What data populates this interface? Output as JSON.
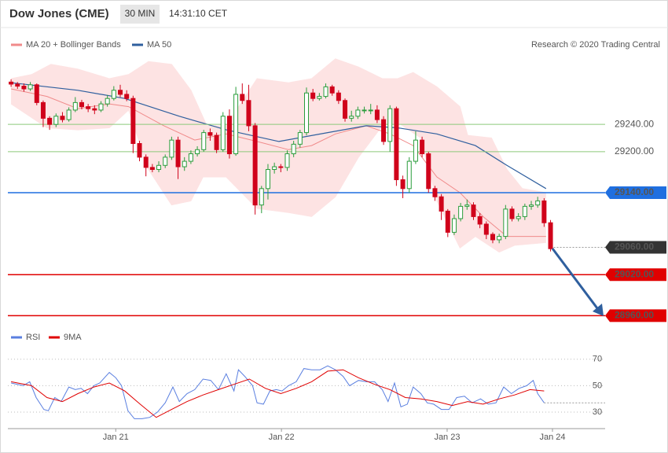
{
  "header": {
    "title": "Dow Jones (CME)",
    "timeframe": "30 MIN",
    "time": "14:31:10 CET",
    "watermark": "Research © 2020 Trading Central"
  },
  "chart_data": {
    "type": "candlestick",
    "xlim": [
      -0.5,
      92.5
    ],
    "xticks": [
      {
        "value": 16.3,
        "label": "Jan 21"
      },
      {
        "value": 42.1,
        "label": "Jan 22"
      },
      {
        "value": 67.9,
        "label": "Jan 23"
      },
      {
        "value": 84.3,
        "label": "Jan 24"
      }
    ],
    "ylim": [
      28950,
      29345
    ],
    "up_color": "#2a9d3c",
    "down_color": "#d0021b",
    "open": [
      29302,
      29299,
      29296,
      29292,
      29298,
      29272,
      29249,
      29240,
      29252,
      29247,
      29261,
      29272,
      29266,
      29263,
      29261,
      29270,
      29278,
      29290,
      29284,
      29278,
      29212,
      29192,
      29177,
      29174,
      29180,
      29192,
      29217,
      29178,
      29186,
      29197,
      29203,
      29228,
      29224,
      29203,
      29252,
      29197,
      29284,
      29275,
      29238,
      29122,
      29146,
      29174,
      29178,
      29177,
      29197,
      29211,
      29228,
      29286,
      29278,
      29281,
      29295,
      29286,
      29275,
      29249,
      29252,
      29261,
      29261,
      29261,
      29247,
      29215,
      29263,
      29159,
      29146,
      29186,
      29217,
      29197,
      29146,
      29134,
      29113,
      29082,
      29102,
      29120,
      29122,
      29105,
      29094,
      29079,
      29071,
      29076,
      29116,
      29102,
      29105,
      29120,
      29122,
      29128,
      29096
    ],
    "high": [
      29306,
      29302,
      29300,
      29302,
      29300,
      29275,
      29252,
      29256,
      29258,
      29265,
      29280,
      29276,
      29270,
      29268,
      29274,
      29283,
      29296,
      29298,
      29290,
      29282,
      29216,
      29196,
      29182,
      29186,
      29196,
      29222,
      29222,
      29192,
      29202,
      29208,
      29232,
      29234,
      29228,
      29258,
      29262,
      29295,
      29300,
      29298,
      29242,
      29150,
      29182,
      29184,
      29182,
      29202,
      29216,
      29232,
      29294,
      29292,
      29286,
      29300,
      29298,
      29290,
      29278,
      29260,
      29266,
      29266,
      29270,
      29268,
      29252,
      29268,
      29266,
      29165,
      29192,
      29230,
      29222,
      29200,
      29150,
      29138,
      29116,
      29108,
      29125,
      29130,
      29126,
      29110,
      29098,
      29082,
      29080,
      29122,
      29120,
      29110,
      29124,
      29128,
      29134,
      29132,
      29100
    ],
    "low": [
      29295,
      29292,
      29288,
      29289,
      29268,
      29236,
      29232,
      29236,
      29243,
      29244,
      29258,
      29262,
      29258,
      29255,
      29258,
      29266,
      29275,
      29280,
      29274,
      29198,
      29186,
      29164,
      29170,
      29170,
      29176,
      29188,
      29160,
      29172,
      29182,
      29193,
      29200,
      29216,
      29198,
      29200,
      29190,
      29194,
      29270,
      29230,
      29108,
      29110,
      29130,
      29168,
      29170,
      29172,
      29192,
      29206,
      29224,
      29274,
      29275,
      29278,
      29282,
      29270,
      29244,
      29244,
      29248,
      29256,
      29255,
      29242,
      29210,
      29200,
      29150,
      29132,
      29140,
      29182,
      29192,
      29140,
      29128,
      29100,
      29075,
      29078,
      29098,
      29115,
      29100,
      29088,
      29072,
      29066,
      29066,
      29072,
      29098,
      29098,
      29100,
      29115,
      29118,
      29090,
      29054
    ],
    "close": [
      29299,
      29296,
      29292,
      29298,
      29272,
      29249,
      29240,
      29252,
      29247,
      29261,
      29272,
      29266,
      29263,
      29261,
      29270,
      29278,
      29290,
      29284,
      29278,
      29212,
      29192,
      29177,
      29174,
      29180,
      29192,
      29217,
      29178,
      29186,
      29197,
      29203,
      29228,
      29224,
      29203,
      29252,
      29197,
      29284,
      29275,
      29238,
      29122,
      29146,
      29174,
      29178,
      29177,
      29197,
      29211,
      29228,
      29286,
      29278,
      29281,
      29295,
      29286,
      29275,
      29249,
      29252,
      29261,
      29261,
      29261,
      29247,
      29215,
      29263,
      29159,
      29146,
      29186,
      29217,
      29197,
      29146,
      29134,
      29113,
      29082,
      29102,
      29120,
      29122,
      29105,
      29094,
      29079,
      29071,
      29076,
      29116,
      29102,
      29105,
      29120,
      29122,
      29128,
      29096,
      29058
    ],
    "band": {
      "name": "MA 20 + Bollinger Bands",
      "color": "#f08a8a",
      "fill": "#fde3e3",
      "ma": {
        "x": [
          0,
          5.6,
          10.4,
          15.3,
          18.3,
          23.8,
          28.6,
          33.5,
          38.3,
          43.2,
          46.8,
          50.5,
          55.3,
          59,
          62.6,
          66.3,
          69.9,
          73.5,
          77.2,
          83.3
        ],
        "values": [
          29292,
          29281,
          29263,
          29270,
          29266,
          29238,
          29217,
          29226,
          29215,
          29203,
          29209,
          29226,
          29238,
          29226,
          29209,
          29163,
          29140,
          29105,
          29076,
          29076
        ]
      },
      "upper": {
        "x": [
          0,
          3.2,
          6.2,
          10.4,
          15.3,
          18.3,
          21.4,
          25,
          28,
          30.5,
          33.5,
          38.3,
          43.2,
          46.8,
          50.5,
          54.1,
          57.8,
          60.2,
          62.6,
          66.3,
          69.9,
          71.1,
          74.8,
          77.2,
          79.6,
          83.3
        ],
        "values": [
          29307,
          29313,
          29328,
          29321,
          29307,
          29313,
          29332,
          29328,
          29290,
          29238,
          29238,
          29307,
          29301,
          29307,
          29336,
          29324,
          29307,
          29307,
          29316,
          29295,
          29266,
          29224,
          29220,
          29174,
          29146,
          29140
        ]
      },
      "lower": {
        "x": [
          0,
          5.6,
          10.4,
          15.3,
          18.3,
          21.4,
          25,
          28,
          29.9,
          33.5,
          38.3,
          43.2,
          46.8,
          50.5,
          54.1,
          57.8,
          60.2,
          63.8,
          66.3,
          69.9,
          72.3,
          76,
          78.4,
          83.3
        ],
        "values": [
          29270,
          29235,
          29232,
          29235,
          29261,
          29174,
          29122,
          29128,
          29163,
          29163,
          29117,
          29111,
          29105,
          29134,
          29192,
          29238,
          29243,
          29220,
          29128,
          29059,
          29076,
          29053,
          29063,
          29067
        ]
      }
    },
    "ma50": {
      "name": "MA 50",
      "color": "#2f5f9e",
      "x": [
        0,
        10.4,
        17.7,
        26.2,
        33.5,
        41.7,
        49.3,
        55.3,
        60.2,
        66.3,
        72.3,
        77.2,
        83.3
      ],
      "values": [
        29301,
        29290,
        29278,
        29252,
        29232,
        29215,
        29228,
        29238,
        29235,
        29226,
        29209,
        29180,
        29146
      ]
    },
    "levels": [
      {
        "value": 29240,
        "label": "29240.00",
        "color": "#8cc97a",
        "text_color": "#3a9a2a",
        "boxed": false,
        "dashed": false
      },
      {
        "value": 29200,
        "label": "29200.00",
        "color": "#8cc97a",
        "text_color": "#3a9a2a",
        "boxed": false,
        "dashed": false
      },
      {
        "value": 29140,
        "label": "29140.00",
        "color": "#1f6fe0",
        "text_color": "#ffffff",
        "boxed": true,
        "dashed": false
      },
      {
        "value": 29060,
        "label": "29060.00",
        "color": "#333333",
        "text_color": "#ffffff",
        "boxed": true,
        "dashed": true
      },
      {
        "value": 29020,
        "label": "29020.00",
        "color": "#e00000",
        "text_color": "#ffffff",
        "boxed": true,
        "dashed": false
      },
      {
        "value": 28960,
        "label": "28960.00",
        "color": "#e00000",
        "text_color": "#ffffff",
        "boxed": true,
        "dashed": false
      }
    ],
    "rsi": {
      "ylim": [
        17.5,
        80
      ],
      "yticks": [
        30,
        50,
        70
      ],
      "series": [
        {
          "name": "RSI",
          "color": "#5a7fe0",
          "x": [
            0,
            1.9,
            2.9,
            3.9,
            5.1,
            5.8,
            6.8,
            7.8,
            9,
            10,
            10.9,
            11.9,
            12.9,
            13.8,
            15.3,
            16.3,
            17.2,
            18.2,
            19.2,
            20.4,
            21.6,
            22.8,
            24,
            25.2,
            26.2,
            27.4,
            28.6,
            29.9,
            31.1,
            32.3,
            33.5,
            34.7,
            35.4,
            36.4,
            37.6,
            38.3,
            39.3,
            40.3,
            41.3,
            42.2,
            43.2,
            44.4,
            45.6,
            46.8,
            48.1,
            49.3,
            50.5,
            51.7,
            52.7,
            54.1,
            55.3,
            56.6,
            57.8,
            58.7,
            59.7,
            60.7,
            61.7,
            62.6,
            63.8,
            64.8,
            65.8,
            67,
            68.2,
            69.4,
            70.6,
            71.8,
            73.1,
            74.3,
            75.5,
            76.7,
            77.9,
            79.1,
            80.3,
            81.3,
            82,
            83
          ],
          "values": [
            52,
            50,
            53,
            41,
            32,
            31,
            41,
            38,
            49,
            47,
            48,
            44,
            50,
            52,
            60,
            56,
            50,
            31,
            25,
            25,
            26,
            30,
            37,
            49,
            38,
            44,
            47,
            55,
            54,
            47,
            59,
            46,
            62,
            57,
            50,
            37,
            36,
            46,
            47,
            46,
            50,
            53,
            63,
            62,
            62,
            65,
            62,
            57,
            50,
            54,
            53,
            53,
            47,
            38,
            52,
            34,
            36,
            49,
            44,
            37,
            36,
            32,
            32,
            41,
            42,
            37,
            40,
            36,
            37,
            49,
            44,
            48,
            50,
            54,
            44,
            37
          ]
        },
        {
          "name": "9MA",
          "color": "#e00000",
          "x": [
            0,
            3.2,
            5.6,
            8,
            10.4,
            12.9,
            15.3,
            17.7,
            20.1,
            22.6,
            25,
            27.4,
            29.9,
            32.3,
            34.7,
            37.1,
            39.6,
            42,
            44.4,
            46.8,
            49.3,
            51.7,
            54.1,
            56.6,
            59,
            61.4,
            63.8,
            66.3,
            68.7,
            71.1,
            73.5,
            76,
            78.4,
            80.8,
            83
          ],
          "values": [
            53,
            50,
            41,
            38,
            44,
            49,
            52,
            46,
            36,
            26,
            32,
            38,
            43,
            47,
            51,
            55,
            48,
            44,
            48,
            53,
            61,
            62,
            56,
            51,
            47,
            41,
            40,
            38,
            35,
            38,
            36,
            40,
            43,
            47,
            46
          ]
        }
      ]
    }
  }
}
